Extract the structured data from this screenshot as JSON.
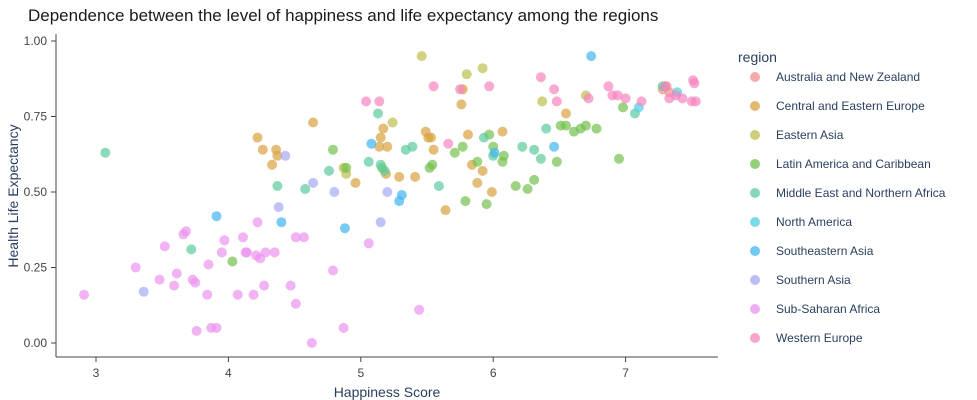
{
  "chart_data": {
    "type": "scatter",
    "title": "Dependence between the level of happiness and life expectancy among the regions",
    "xlabel": "Happiness Score",
    "ylabel": "Health Life Expectancy",
    "xlim": [
      2.7,
      7.8
    ],
    "ylim": [
      -0.04,
      1.02
    ],
    "x_ticks": [
      3,
      4,
      5,
      6,
      7
    ],
    "y_ticks": [
      0,
      0.25,
      0.5,
      0.75,
      1
    ],
    "x_tick_labels": [
      "3",
      "4",
      "5",
      "6",
      "7"
    ],
    "y_tick_labels": [
      "0.00",
      "0.25",
      "0.50",
      "0.75",
      "1.00"
    ],
    "grid": false,
    "legend_title": "region",
    "legend_position": "right",
    "series": [
      {
        "name": "Australia and New Zealand",
        "color": "#F28E8E",
        "points": [
          [
            7.28,
            0.84
          ],
          [
            7.31,
            0.85
          ],
          [
            7.33,
            0.83
          ]
        ]
      },
      {
        "name": "Central and Eastern Europe",
        "color": "#D9A23F",
        "points": [
          [
            4.22,
            0.68
          ],
          [
            4.26,
            0.64
          ],
          [
            4.33,
            0.59
          ],
          [
            4.36,
            0.64
          ],
          [
            4.37,
            0.62
          ],
          [
            4.64,
            0.73
          ],
          [
            4.96,
            0.53
          ],
          [
            5.14,
            0.65
          ],
          [
            5.15,
            0.68
          ],
          [
            5.17,
            0.71
          ],
          [
            5.19,
            0.56
          ],
          [
            5.2,
            0.65
          ],
          [
            5.29,
            0.55
          ],
          [
            5.41,
            0.55
          ],
          [
            5.49,
            0.7
          ],
          [
            5.51,
            0.68
          ],
          [
            5.53,
            0.68
          ],
          [
            5.55,
            0.64
          ],
          [
            5.64,
            0.44
          ],
          [
            5.76,
            0.79
          ],
          [
            5.77,
            0.84
          ],
          [
            5.81,
            0.69
          ],
          [
            5.84,
            0.59
          ],
          [
            5.88,
            0.53
          ],
          [
            5.92,
            0.57
          ],
          [
            5.99,
            0.5
          ],
          [
            6.07,
            0.7
          ],
          [
            6.55,
            0.76
          ]
        ]
      },
      {
        "name": "Eastern Asia",
        "color": "#BDBE4F",
        "points": [
          [
            4.87,
            0.58
          ],
          [
            4.89,
            0.56
          ],
          [
            5.24,
            0.73
          ],
          [
            5.46,
            0.95
          ],
          [
            5.8,
            0.89
          ],
          [
            5.92,
            0.91
          ],
          [
            6.37,
            0.8
          ],
          [
            6.7,
            0.82
          ]
        ]
      },
      {
        "name": "Latin America and Caribbean",
        "color": "#73C04D",
        "points": [
          [
            4.03,
            0.27
          ],
          [
            4.79,
            0.64
          ],
          [
            4.89,
            0.58
          ],
          [
            5.16,
            0.58
          ],
          [
            5.52,
            0.58
          ],
          [
            5.54,
            0.59
          ],
          [
            5.71,
            0.63
          ],
          [
            5.77,
            0.65
          ],
          [
            5.79,
            0.47
          ],
          [
            5.88,
            0.6
          ],
          [
            5.95,
            0.46
          ],
          [
            5.97,
            0.69
          ],
          [
            6.0,
            0.65
          ],
          [
            6.07,
            0.6
          ],
          [
            6.08,
            0.62
          ],
          [
            6.17,
            0.52
          ],
          [
            6.26,
            0.51
          ],
          [
            6.31,
            0.54
          ],
          [
            6.48,
            0.6
          ],
          [
            6.51,
            0.72
          ],
          [
            6.55,
            0.72
          ],
          [
            6.61,
            0.7
          ],
          [
            6.66,
            0.71
          ],
          [
            6.7,
            0.72
          ],
          [
            6.78,
            0.71
          ],
          [
            6.95,
            0.61
          ],
          [
            6.98,
            0.78
          ]
        ]
      },
      {
        "name": "Middle East and Northern Africa",
        "color": "#5CCB9C",
        "points": [
          [
            3.07,
            0.63
          ],
          [
            3.72,
            0.31
          ],
          [
            4.37,
            0.52
          ],
          [
            4.58,
            0.51
          ],
          [
            4.76,
            0.57
          ],
          [
            5.06,
            0.6
          ],
          [
            5.13,
            0.76
          ],
          [
            5.15,
            0.59
          ],
          [
            5.18,
            0.57
          ],
          [
            5.34,
            0.64
          ],
          [
            5.39,
            0.65
          ],
          [
            5.59,
            0.52
          ],
          [
            5.93,
            0.68
          ],
          [
            6.0,
            0.62
          ],
          [
            6.22,
            0.65
          ],
          [
            6.31,
            0.64
          ],
          [
            6.36,
            0.61
          ],
          [
            6.4,
            0.71
          ],
          [
            7.07,
            0.76
          ],
          [
            7.28,
            0.85
          ]
        ]
      },
      {
        "name": "North America",
        "color": "#4ECDE0",
        "points": [
          [
            7.1,
            0.78
          ],
          [
            7.39,
            0.83
          ]
        ]
      },
      {
        "name": "Southeastern Asia",
        "color": "#41B5F0",
        "points": [
          [
            3.91,
            0.42
          ],
          [
            4.4,
            0.4
          ],
          [
            4.88,
            0.38
          ],
          [
            5.08,
            0.66
          ],
          [
            5.29,
            0.47
          ],
          [
            5.31,
            0.49
          ],
          [
            6.01,
            0.63
          ],
          [
            6.46,
            0.65
          ],
          [
            6.74,
            0.95
          ]
        ]
      },
      {
        "name": "Southern Asia",
        "color": "#A6A8F2",
        "points": [
          [
            3.36,
            0.17
          ],
          [
            4.38,
            0.45
          ],
          [
            4.43,
            0.62
          ],
          [
            4.64,
            0.53
          ],
          [
            4.8,
            0.5
          ],
          [
            5.15,
            0.4
          ],
          [
            5.2,
            0.5
          ]
        ]
      },
      {
        "name": "Sub-Saharan Africa",
        "color": "#EB93EE",
        "points": [
          [
            2.91,
            0.16
          ],
          [
            3.3,
            0.25
          ],
          [
            3.48,
            0.21
          ],
          [
            3.52,
            0.32
          ],
          [
            3.59,
            0.19
          ],
          [
            3.61,
            0.23
          ],
          [
            3.66,
            0.36
          ],
          [
            3.68,
            0.37
          ],
          [
            3.73,
            0.21
          ],
          [
            3.75,
            0.2
          ],
          [
            3.76,
            0.04
          ],
          [
            3.84,
            0.16
          ],
          [
            3.85,
            0.26
          ],
          [
            3.87,
            0.05
          ],
          [
            3.91,
            0.05
          ],
          [
            3.95,
            0.3
          ],
          [
            3.97,
            0.34
          ],
          [
            4.07,
            0.16
          ],
          [
            4.11,
            0.35
          ],
          [
            4.13,
            0.3
          ],
          [
            4.14,
            0.3
          ],
          [
            4.19,
            0.16
          ],
          [
            4.21,
            0.29
          ],
          [
            4.22,
            0.4
          ],
          [
            4.24,
            0.28
          ],
          [
            4.27,
            0.19
          ],
          [
            4.28,
            0.3
          ],
          [
            4.35,
            0.3
          ],
          [
            4.47,
            0.19
          ],
          [
            4.51,
            0.35
          ],
          [
            4.51,
            0.13
          ],
          [
            4.57,
            0.35
          ],
          [
            4.63,
            0.0
          ],
          [
            4.79,
            0.24
          ],
          [
            4.87,
            0.05
          ],
          [
            5.06,
            0.33
          ],
          [
            5.44,
            0.11
          ]
        ]
      },
      {
        "name": "Western Europe",
        "color": "#F785BF",
        "points": [
          [
            5.04,
            0.8
          ],
          [
            5.14,
            0.8
          ],
          [
            5.55,
            0.85
          ],
          [
            5.66,
            0.66
          ],
          [
            5.75,
            0.84
          ],
          [
            5.97,
            0.85
          ],
          [
            6.36,
            0.88
          ],
          [
            6.46,
            0.84
          ],
          [
            6.48,
            0.8
          ],
          [
            6.72,
            0.81
          ],
          [
            6.87,
            0.85
          ],
          [
            6.9,
            0.82
          ],
          [
            6.94,
            0.82
          ],
          [
            7.0,
            0.81
          ],
          [
            7.12,
            0.8
          ],
          [
            7.3,
            0.85
          ],
          [
            7.33,
            0.81
          ],
          [
            7.38,
            0.82
          ],
          [
            7.43,
            0.81
          ],
          [
            7.5,
            0.8
          ],
          [
            7.51,
            0.87
          ],
          [
            7.52,
            0.86
          ],
          [
            7.53,
            0.8
          ]
        ]
      }
    ]
  }
}
